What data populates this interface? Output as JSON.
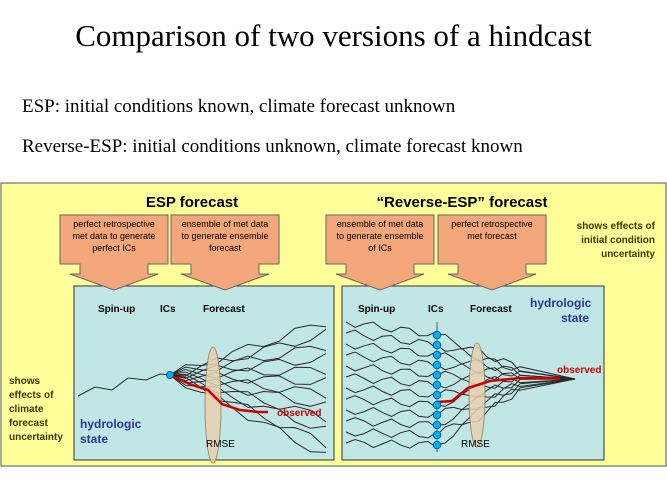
{
  "title": "Comparison of two versions of a hindcast",
  "lines": {
    "esp": "ESP:  initial conditions known, climate forecast unknown",
    "reverse": "Reverse-ESP:  initial conditions unknown, climate forecast known"
  },
  "diagram": {
    "left_heading": "ESP forecast",
    "right_heading": "“Reverse-ESP” forecast",
    "boxes": {
      "l1": [
        "perfect retrospective",
        "met data to generate",
        "perfect ICs"
      ],
      "l2": [
        "ensemble of met data",
        "to generate ensemble",
        "forecast"
      ],
      "r1": [
        "ensemble of met data",
        "to generate ensemble",
        "of ICs"
      ],
      "r2": [
        "perfect retrospective",
        "met forecast"
      ]
    },
    "phases": {
      "spinup": "Spin-up",
      "ics": "ICs",
      "forecast": "Forecast"
    },
    "observed": "observed",
    "rmse": "RMSE",
    "hydrologic_state": [
      "hydrologic",
      "state"
    ],
    "right_note": [
      "shows effects of",
      "initial condition",
      "uncertainty"
    ],
    "left_note": [
      "shows",
      "effects of",
      "climate",
      "forecast",
      "uncertainty"
    ],
    "colors": {
      "panel": "#ffff99",
      "plot": "#c0e6e6",
      "box": "#f4a77a",
      "blue": "#2a3596",
      "red": "#d00000",
      "dot": "#00b0f0",
      "ellipse": "#e8d2b0"
    }
  }
}
